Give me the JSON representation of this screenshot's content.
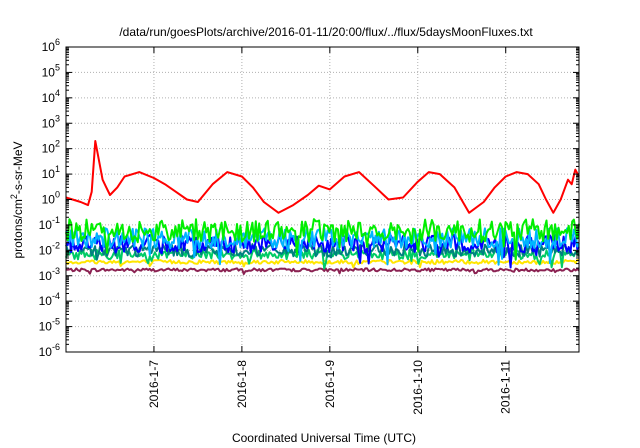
{
  "chart_data": {
    "type": "line",
    "title": "/data/run/goesPlots/archive/2016-01-11/20:00/flux/../flux/5daysMoonFluxes.txt",
    "xlabel": "Coordinated Universal Time (UTC)",
    "ylabel": "protons/cm²-s-sr-MeV",
    "ylabel_parts": {
      "base": "protons/cm",
      "sup": "2",
      "rest": "-s-sr-MeV"
    },
    "yscale": "log",
    "ylim_exp": [
      -6,
      6
    ],
    "xlim": [
      "2016-01-06 00:00",
      "2016-01-11 20:00"
    ],
    "xticks": [
      "2016-1-7",
      "2016-1-8",
      "2016-1-9",
      "2016-1-10",
      "2016-1-11"
    ],
    "grid": true,
    "legend": "none",
    "series": [
      {
        "color": "#ff0000",
        "x": [
          "2016-01-06 00:00",
          "2016-01-06 04:00",
          "2016-01-06 06:00",
          "2016-01-06 07:00",
          "2016-01-06 08:00",
          "2016-01-06 10:00",
          "2016-01-06 11:00",
          "2016-01-06 12:00",
          "2016-01-06 14:00",
          "2016-01-06 16:00",
          "2016-01-06 20:00",
          "2016-01-07 00:00",
          "2016-01-07 03:00",
          "2016-01-07 06:00",
          "2016-01-07 09:00",
          "2016-01-07 12:00",
          "2016-01-07 16:00",
          "2016-01-07 20:00",
          "2016-01-08 00:00",
          "2016-01-08 03:00",
          "2016-01-08 06:00",
          "2016-01-08 10:00",
          "2016-01-08 14:00",
          "2016-01-08 18:00",
          "2016-01-08 21:00",
          "2016-01-09 00:00",
          "2016-01-09 04:00",
          "2016-01-09 08:00",
          "2016-01-09 12:00",
          "2016-01-09 16:00",
          "2016-01-09 20:00",
          "2016-01-10 00:00",
          "2016-01-10 03:00",
          "2016-01-10 06:00",
          "2016-01-10 10:00",
          "2016-01-10 14:00",
          "2016-01-10 18:00",
          "2016-01-10 21:00",
          "2016-01-11 00:00",
          "2016-01-11 03:00",
          "2016-01-11 06:00",
          "2016-01-11 09:00",
          "2016-01-11 11:00",
          "2016-01-11 13:00",
          "2016-01-11 15:00",
          "2016-01-11 17:00",
          "2016-01-11 18:00",
          "2016-01-11 19:00",
          "2016-01-11 20:00"
        ],
        "y": [
          1.2,
          0.8,
          0.6,
          2.0,
          200,
          6.0,
          3.0,
          1.5,
          3.0,
          8.0,
          12.0,
          7.0,
          4.0,
          2.0,
          1.0,
          0.8,
          4.0,
          12.0,
          8.0,
          3.0,
          0.8,
          0.3,
          0.6,
          1.5,
          3.5,
          2.5,
          8.0,
          12.0,
          3.5,
          1.0,
          1.2,
          5.0,
          12.0,
          10.0,
          3.0,
          0.3,
          0.8,
          3.0,
          8.0,
          12.0,
          10.0,
          4.0,
          1.0,
          0.3,
          1.0,
          6.0,
          4.0,
          15.0,
          8.0
        ]
      }
    ],
    "bands": [
      {
        "color": "#00ee00",
        "level": 0.06,
        "spread": 0.45
      },
      {
        "color": "#00b4ff",
        "level": 0.03,
        "spread": 0.4
      },
      {
        "color": "#0000ff",
        "level": 0.018,
        "spread": 0.35
      },
      {
        "color": "#008080",
        "level": 0.01,
        "spread": 0.25
      },
      {
        "color": "#00cc66",
        "level": 0.007,
        "spread": 0.2
      },
      {
        "color": "#ffe600",
        "level": 0.0035,
        "spread": 0.08
      },
      {
        "color": "#8b2252",
        "level": 0.0017,
        "spread": 0.06
      }
    ]
  }
}
